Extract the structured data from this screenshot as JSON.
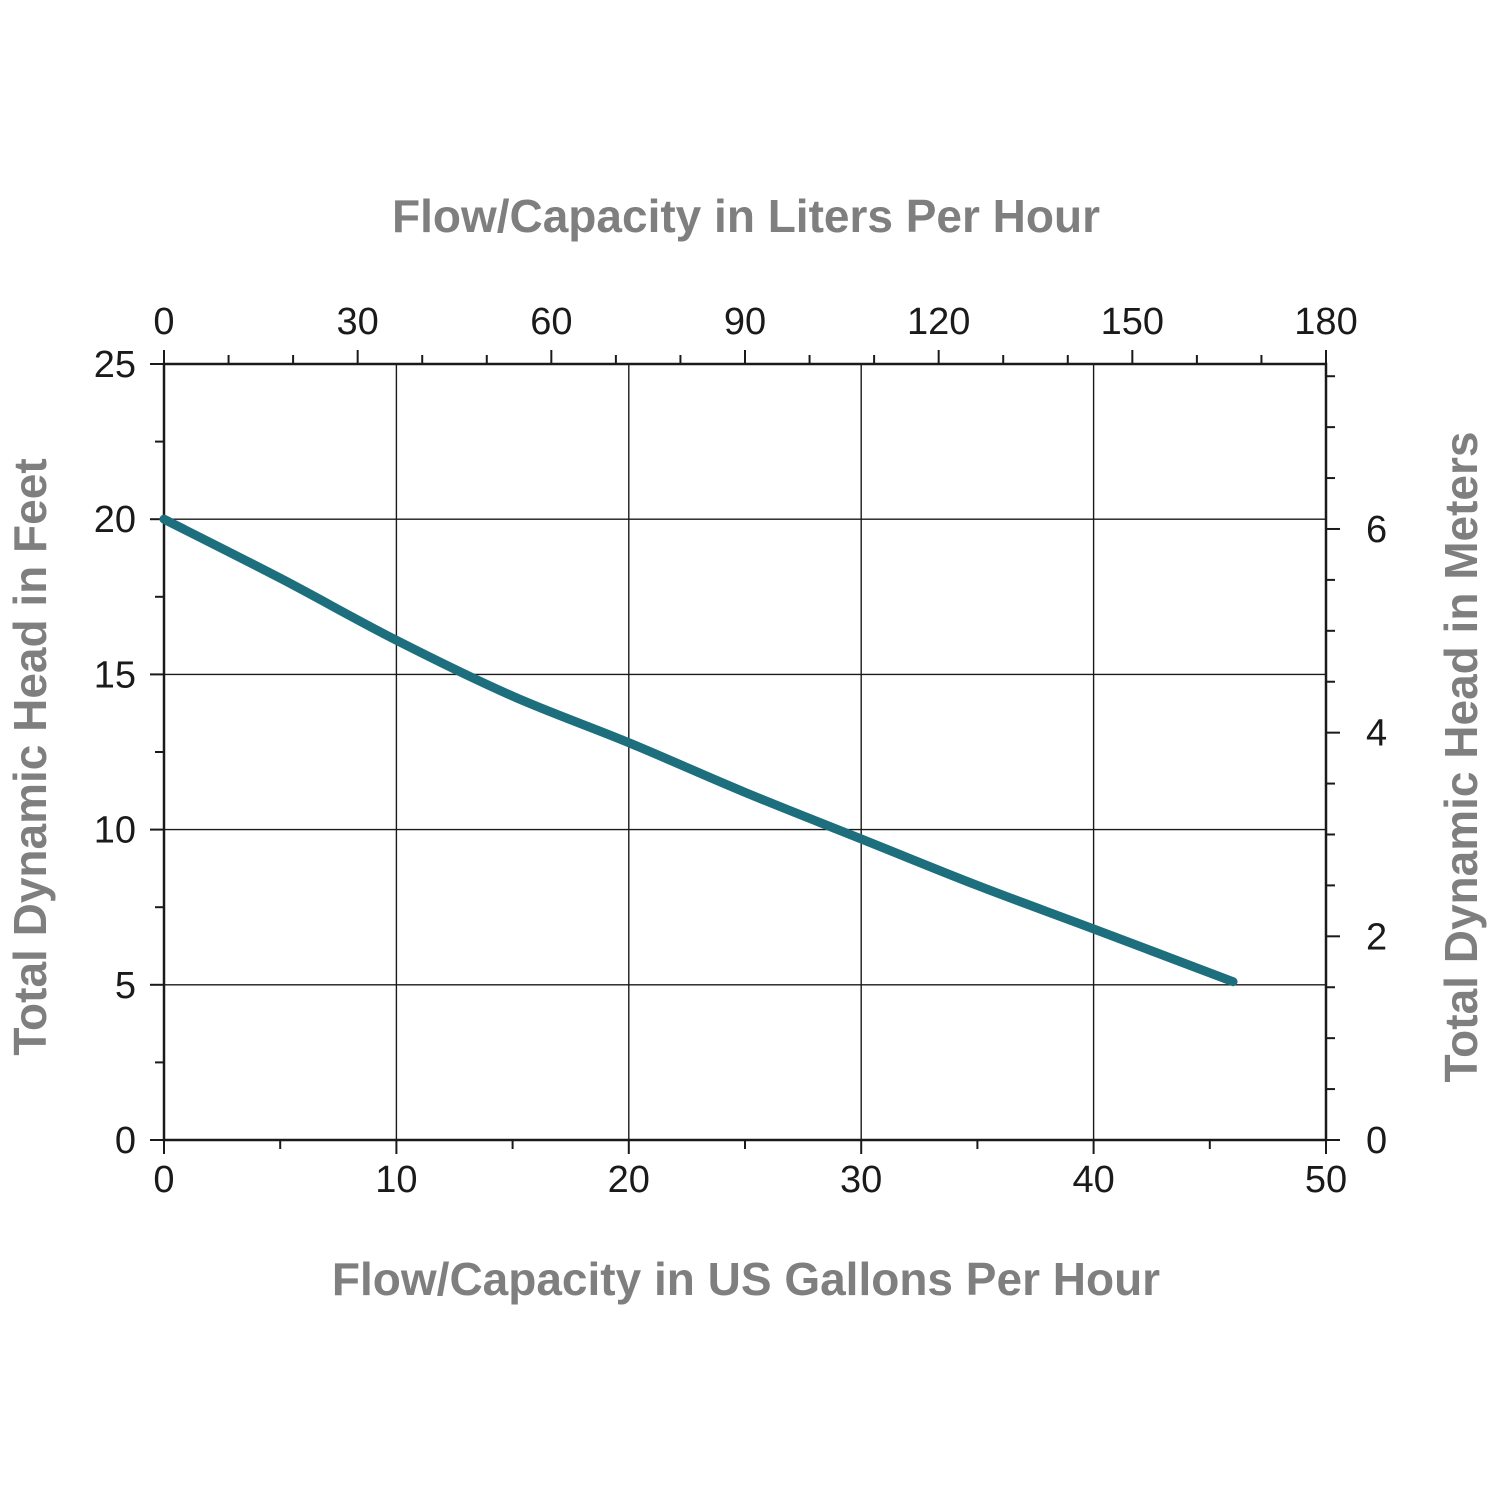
{
  "chart_data": {
    "type": "line",
    "top_xlabel": "Flow/Capacity in Liters Per Hour",
    "xlabel": "Flow/Capacity in US Gallons Per Hour",
    "ylabel": "Total Dynamic Head in Feet",
    "right_ylabel": "Total Dynamic Head in Meters",
    "xlim": [
      0,
      50
    ],
    "ylim": [
      0,
      25
    ],
    "top_xlim": [
      0,
      180
    ],
    "right_ylim": [
      0,
      7.62
    ],
    "x_ticks": [
      "0",
      "10",
      "20",
      "30",
      "40",
      "50"
    ],
    "y_ticks": [
      "0",
      "5",
      "10",
      "15",
      "20",
      "25"
    ],
    "top_x_ticks": [
      "0",
      "30",
      "60",
      "90",
      "120",
      "150",
      "180"
    ],
    "right_y_ticks": [
      "0",
      "2",
      "4",
      "6"
    ],
    "grid": true,
    "series": [
      {
        "color": "#1d6f7e",
        "x": [
          0,
          5,
          10,
          15,
          20,
          25,
          30,
          35,
          40,
          46
        ],
        "y": [
          20,
          18.1,
          16.1,
          14.3,
          12.8,
          11.2,
          9.7,
          8.2,
          6.8,
          5.1
        ]
      }
    ]
  }
}
